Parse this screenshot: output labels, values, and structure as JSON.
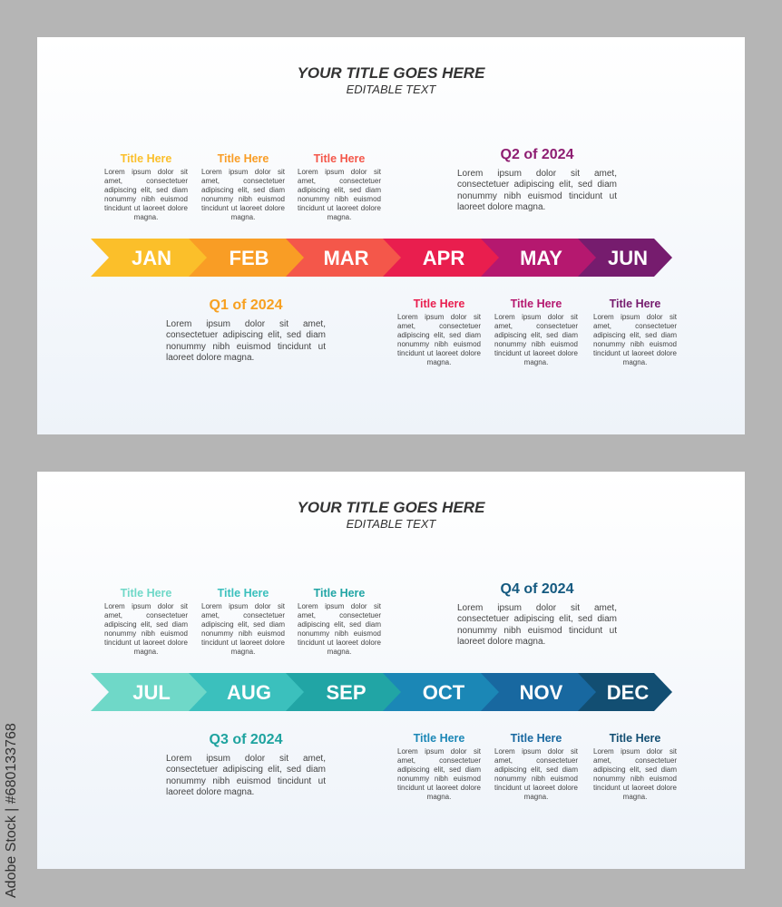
{
  "panels": [
    {
      "title": "YOUR TITLE GOES HERE",
      "subtitle": "EDITABLE TEXT",
      "months": [
        {
          "label": "JAN",
          "color": "#fbbf2a"
        },
        {
          "label": "FEB",
          "color": "#f99d25"
        },
        {
          "label": "MAR",
          "color": "#f4574a"
        },
        {
          "label": "APR",
          "color": "#e91e4e"
        },
        {
          "label": "MAY",
          "color": "#b5186f"
        },
        {
          "label": "JUN",
          "color": "#761c6e"
        }
      ],
      "items": [
        {
          "title": "Title Here",
          "color": "#fbbf2a",
          "text": "Lorem ipsum dolor sit amet, consectetuer adipiscing elit, sed diam nonummy nibh euismod tincidunt ut laoreet dolore magna."
        },
        {
          "title": "Title Here",
          "color": "#f99d25",
          "text": "Lorem ipsum dolor sit amet, consectetuer adipiscing elit, sed diam nonummy nibh euismod tincidunt ut laoreet dolore magna."
        },
        {
          "title": "Title Here",
          "color": "#f4574a",
          "text": "Lorem ipsum dolor sit amet, consectetuer adipiscing elit, sed diam nonummy nibh euismod tincidunt ut laoreet dolore magna."
        },
        {
          "title": "Title Here",
          "color": "#e91e4e",
          "text": "Lorem ipsum dolor sit amet, consectetuer adipiscing elit, sed diam nonummy nibh euismod tincidunt ut laoreet dolore magna."
        },
        {
          "title": "Title Here",
          "color": "#b5186f",
          "text": "Lorem ipsum dolor sit amet, consectetuer adipiscing elit, sed diam nonummy nibh euismod tincidunt ut laoreet dolore magna."
        },
        {
          "title": "Title Here",
          "color": "#761c6e",
          "text": "Lorem ipsum dolor sit amet, consectetuer adipiscing elit, sed diam nonummy nibh euismod tincidunt ut laoreet dolore magna."
        }
      ],
      "quarters": [
        {
          "title": "Q1 of 2024",
          "color": "#f7a020",
          "text": "Lorem ipsum dolor sit amet, consectetuer adipiscing elit, sed diam nonummy nibh euismod tincidunt ut laoreet dolore magna."
        },
        {
          "title": "Q2 of 2024",
          "color": "#8e1e72",
          "text": "Lorem ipsum dolor sit amet, consectetuer adipiscing elit, sed diam nonummy nibh euismod tincidunt ut laoreet dolore magna."
        }
      ]
    },
    {
      "title": "YOUR TITLE GOES HERE",
      "subtitle": "EDITABLE TEXT",
      "months": [
        {
          "label": "JUL",
          "color": "#6fd8c8"
        },
        {
          "label": "AUG",
          "color": "#3bc0bd"
        },
        {
          "label": "SEP",
          "color": "#21a5a5"
        },
        {
          "label": "OCT",
          "color": "#1b87b6"
        },
        {
          "label": "NOV",
          "color": "#1868a0"
        },
        {
          "label": "DEC",
          "color": "#124e72"
        }
      ],
      "items": [
        {
          "title": "Title Here",
          "color": "#6fd8c8",
          "text": "Lorem ipsum dolor sit amet, consectetuer adipiscing elit, sed diam nonummy nibh euismod tincidunt ut laoreet dolore magna."
        },
        {
          "title": "Title Here",
          "color": "#3bc0bd",
          "text": "Lorem ipsum dolor sit amet, consectetuer adipiscing elit, sed diam nonummy nibh euismod tincidunt ut laoreet dolore magna."
        },
        {
          "title": "Title Here",
          "color": "#21a5a5",
          "text": "Lorem ipsum dolor sit amet, consectetuer adipiscing elit, sed diam nonummy nibh euismod tincidunt ut laoreet dolore magna."
        },
        {
          "title": "Title Here",
          "color": "#1b87b6",
          "text": "Lorem ipsum dolor sit amet, consectetuer adipiscing elit, sed diam nonummy nibh euismod tincidunt ut laoreet dolore magna."
        },
        {
          "title": "Title Here",
          "color": "#1868a0",
          "text": "Lorem ipsum dolor sit amet, consectetuer adipiscing elit, sed diam nonummy nibh euismod tincidunt ut laoreet dolore magna."
        },
        {
          "title": "Title Here",
          "color": "#124e72",
          "text": "Lorem ipsum dolor sit amet, consectetuer adipiscing elit, sed diam nonummy nibh euismod tincidunt ut laoreet dolore magna."
        }
      ],
      "quarters": [
        {
          "title": "Q3 of 2024",
          "color": "#1ea39f",
          "text": "Lorem ipsum dolor sit amet, consectetuer adipiscing elit, sed diam nonummy nibh euismod tincidunt ut laoreet dolore magna."
        },
        {
          "title": "Q4 of 2024",
          "color": "#155a80",
          "text": "Lorem ipsum dolor sit amet, consectetuer adipiscing elit, sed diam nonummy nibh euismod tincidunt ut laoreet dolore magna."
        }
      ]
    }
  ],
  "watermark": "Adobe Stock | #680133768"
}
